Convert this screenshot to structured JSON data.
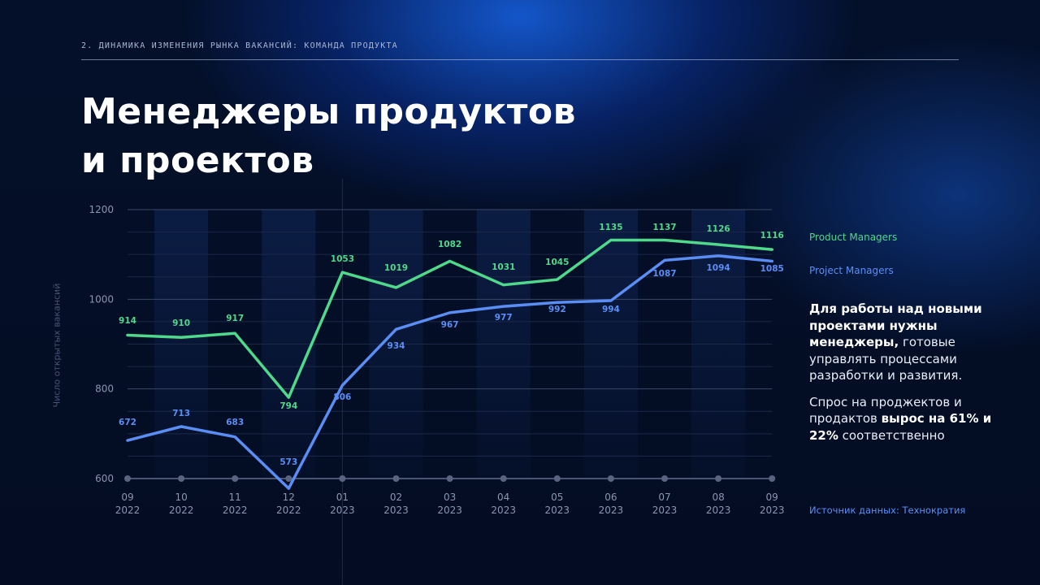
{
  "header": {
    "eyebrow": "2. Динамика изменения рынка вакансий: команда продукта",
    "title_line1": "Менеджеры продуктов",
    "title_line2": "и проектов"
  },
  "legend": {
    "series1": "Product Managers",
    "series2": "Project Managers"
  },
  "note": {
    "p1_bold": "Для работы над новыми проектами нужны менеджеры,",
    "p1_rest": " готовые управлять процессами разработки и развития.",
    "p2_start": "Спрос на проджектов и продактов ",
    "p2_bold": "вырос на 61% и 22%",
    "p2_end": " соответственно"
  },
  "source": "Источник данных: Технократия",
  "colors": {
    "product": "#4fd98a",
    "project": "#5b8ef5",
    "grid": "#2a3654",
    "axis_text": "#8a95b0"
  },
  "chart_data": {
    "type": "line",
    "ylabel": "Число открытых вакансий",
    "ylim": [
      600,
      1200
    ],
    "yticks": [
      600,
      800,
      1000,
      1200
    ],
    "grid": true,
    "legend_position": "right",
    "categories": [
      [
        "09",
        "2022"
      ],
      [
        "10",
        "2022"
      ],
      [
        "11",
        "2022"
      ],
      [
        "12",
        "2022"
      ],
      [
        "01",
        "2023"
      ],
      [
        "02",
        "2023"
      ],
      [
        "03",
        "2023"
      ],
      [
        "04",
        "2023"
      ],
      [
        "05",
        "2023"
      ],
      [
        "06",
        "2023"
      ],
      [
        "07",
        "2023"
      ],
      [
        "08",
        "2023"
      ],
      [
        "09",
        "2023"
      ]
    ],
    "series": [
      {
        "name": "Product Managers",
        "values": [
          914,
          910,
          917,
          794,
          1053,
          1019,
          1082,
          1031,
          1045,
          1135,
          1137,
          1126,
          1116
        ],
        "line_y": [
          920,
          915,
          924,
          781,
          1060,
          1026,
          1085,
          1032,
          1044,
          1132,
          1132,
          1122,
          1111
        ],
        "color": "#4fd98a"
      },
      {
        "name": "Project Managers",
        "values": [
          672,
          713,
          683,
          573,
          806,
          934,
          967,
          977,
          992,
          994,
          1087,
          1094,
          1085
        ],
        "line_y": [
          685,
          716,
          693,
          578,
          808,
          933,
          970,
          984,
          993,
          997,
          1087,
          1097,
          1085
        ],
        "color": "#5b8ef5"
      }
    ]
  }
}
